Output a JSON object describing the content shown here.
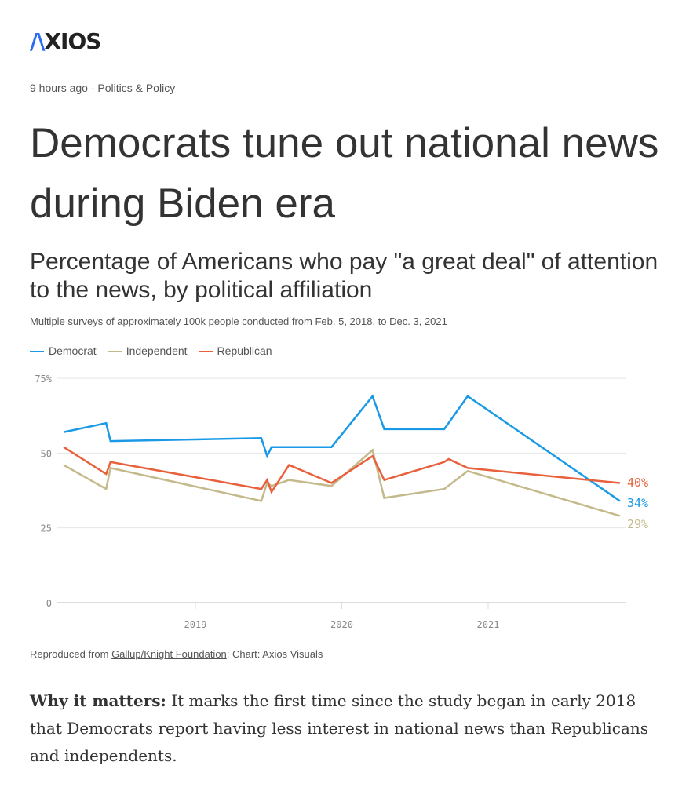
{
  "logo": "AXIOS",
  "meta": "9 hours ago - Politics & Policy",
  "headline": "Democrats tune out national news during Biden era",
  "chart_data": {
    "type": "line",
    "title": "Percentage of Americans who pay \"a great deal\" of attention to the news, by political affiliation",
    "subtitle": "Multiple surveys of approximately 100k people conducted from Feb. 5, 2018, to Dec. 3, 2021",
    "ylim": [
      0,
      75
    ],
    "yticks": [
      {
        "v": 75,
        "label": "75%"
      },
      {
        "v": 50,
        "label": "50"
      },
      {
        "v": 25,
        "label": "25"
      },
      {
        "v": 0,
        "label": "0"
      }
    ],
    "xlim": [
      2018.05,
      2021.95
    ],
    "xticks": [
      {
        "v": 2019,
        "label": "2019"
      },
      {
        "v": 2020,
        "label": "2020"
      },
      {
        "v": 2021,
        "label": "2021"
      }
    ],
    "legend_position": "top-left",
    "series": [
      {
        "name": "Democrat",
        "color": "#1a9ae6",
        "end_label": "34%",
        "points": [
          [
            2018.1,
            57
          ],
          [
            2018.39,
            60
          ],
          [
            2018.42,
            54
          ],
          [
            2019.45,
            55
          ],
          [
            2019.49,
            49
          ],
          [
            2019.52,
            52
          ],
          [
            2019.93,
            52
          ],
          [
            2020.21,
            69
          ],
          [
            2020.29,
            58
          ],
          [
            2020.7,
            58
          ],
          [
            2020.86,
            69
          ],
          [
            2021.9,
            34
          ]
        ]
      },
      {
        "name": "Independent",
        "color": "#c4b98a",
        "end_label": "29%",
        "points": [
          [
            2018.1,
            46
          ],
          [
            2018.39,
            38
          ],
          [
            2018.42,
            45
          ],
          [
            2019.45,
            34
          ],
          [
            2019.49,
            40
          ],
          [
            2019.52,
            39
          ],
          [
            2019.64,
            41
          ],
          [
            2019.93,
            39
          ],
          [
            2020.21,
            51
          ],
          [
            2020.29,
            35
          ],
          [
            2020.7,
            38
          ],
          [
            2020.86,
            44
          ],
          [
            2021.9,
            29
          ]
        ]
      },
      {
        "name": "Republican",
        "color": "#e8603c",
        "end_label": "40%",
        "points": [
          [
            2018.1,
            52
          ],
          [
            2018.39,
            43
          ],
          [
            2018.42,
            47
          ],
          [
            2019.45,
            38
          ],
          [
            2019.49,
            41
          ],
          [
            2019.52,
            37
          ],
          [
            2019.64,
            46
          ],
          [
            2019.93,
            40
          ],
          [
            2020.21,
            49
          ],
          [
            2020.29,
            41
          ],
          [
            2020.7,
            47
          ],
          [
            2020.73,
            48
          ],
          [
            2020.86,
            45
          ],
          [
            2021.9,
            40
          ]
        ]
      }
    ]
  },
  "source": {
    "prefix": "Reproduced from ",
    "link": "Gallup/Knight Foundation",
    "suffix": "; Chart: Axios Visuals"
  },
  "body": {
    "lead": "Why it matters:",
    "text": " It marks the first time since the study began in early 2018 that Democrats report having less interest in national news than Republicans and independents."
  }
}
